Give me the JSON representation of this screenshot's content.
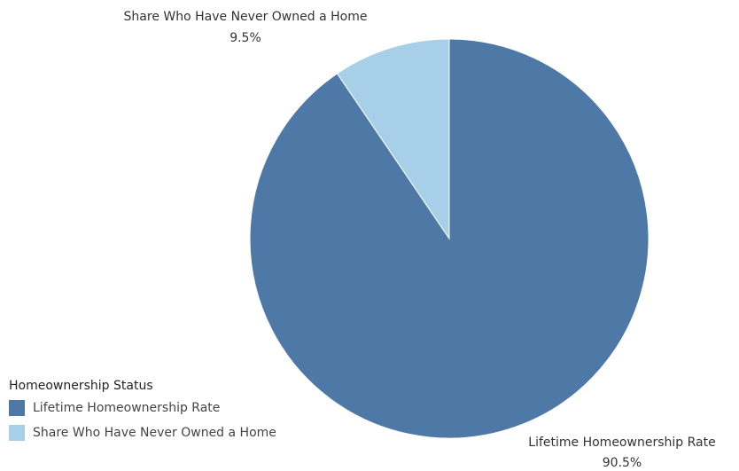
{
  "chart_data": {
    "type": "pie",
    "start_angle_deg": 0,
    "direction": "clockwise",
    "slices": [
      {
        "label": "Lifetime Homeownership Rate",
        "value": 90.5,
        "value_label": "90.5%",
        "color": "#4e79a7"
      },
      {
        "label": "Share Who Have Never Owned a Home",
        "value": 9.5,
        "value_label": "9.5%",
        "color": "#a7cfe8"
      }
    ],
    "legend": {
      "title": "Homeownership Status",
      "placement": "bottom-left",
      "items": [
        {
          "label": "Lifetime Homeownership Rate",
          "color": "#4e79a7"
        },
        {
          "label": "Share Who Have Never Owned a Home",
          "color": "#a7cfe8"
        }
      ]
    }
  }
}
